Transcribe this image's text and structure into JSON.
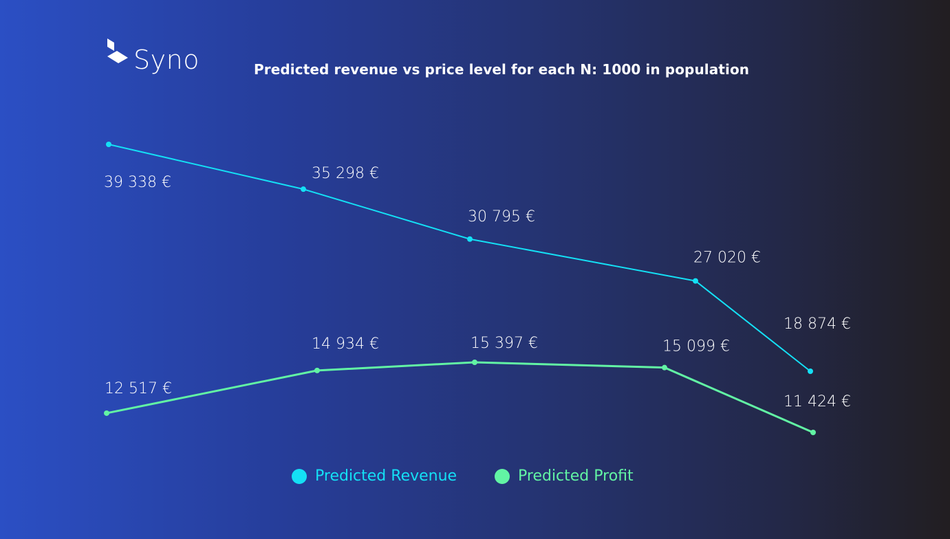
{
  "brand": {
    "name": "Syno"
  },
  "colors": {
    "revenue": "#14e0f5",
    "profit": "#62f4a4",
    "label": "#ffffff"
  },
  "chart_data": {
    "type": "line",
    "title": "Predicted revenue vs price level for each N: 1000 in population",
    "xlabel": "",
    "ylabel": "",
    "grid": false,
    "legend": "bottom-center",
    "x": [
      1,
      2,
      3,
      4,
      5
    ],
    "series": [
      {
        "name": "Predicted Revenue",
        "values": [
          39338,
          35298,
          30795,
          27020,
          18874
        ],
        "labels": [
          "39 338 €",
          "35 298 €",
          "30 795 €",
          "27 020 €",
          "18 874 €"
        ]
      },
      {
        "name": "Predicted Profit",
        "values": [
          12517,
          14934,
          15397,
          15099,
          11424
        ],
        "labels": [
          "12 517 €",
          "14 934 €",
          "15 397 €",
          "15 099 €",
          "11 424 €"
        ]
      }
    ]
  }
}
